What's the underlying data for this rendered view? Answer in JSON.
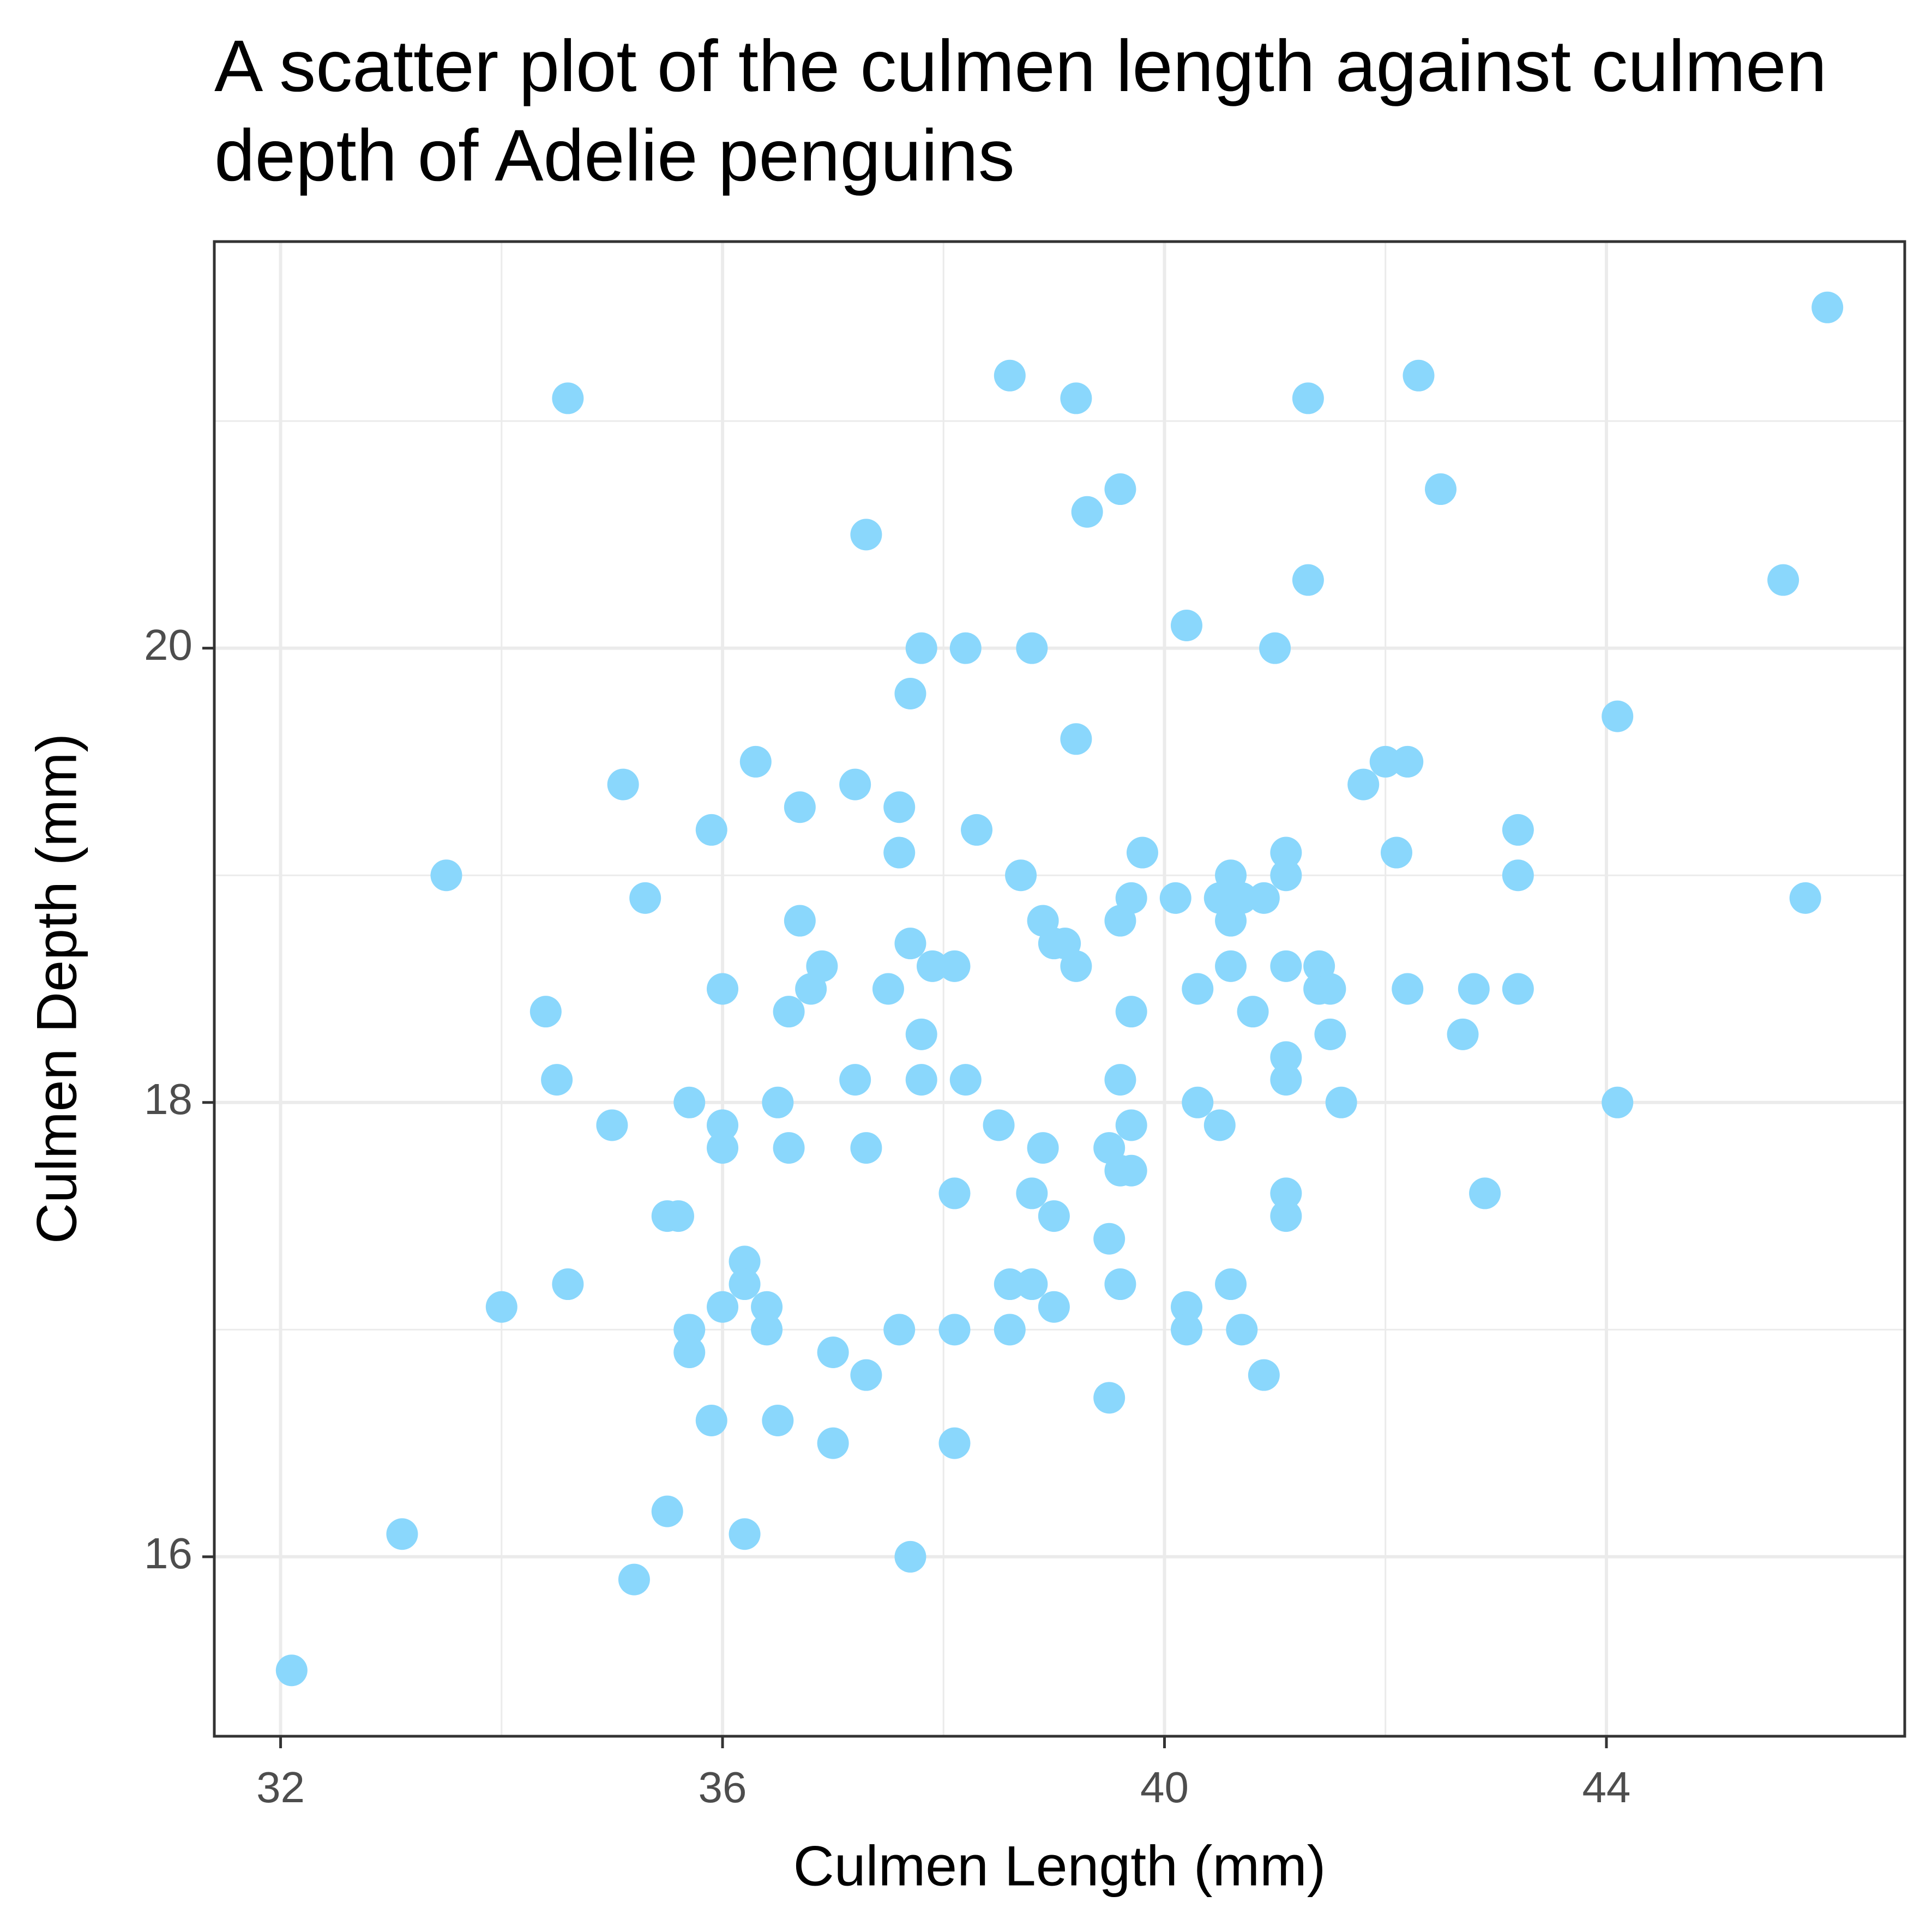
{
  "chart_data": {
    "type": "scatter",
    "title": "A scatter plot of the culmen length against culmen depth of Adelie penguins",
    "x_label": "Culmen Length (mm)",
    "y_label": "Culmen Depth (mm)",
    "color": "#8AD7FC",
    "grid": true,
    "minor_grid": true,
    "xlim": [
      31.4,
      46.7
    ],
    "ylim": [
      15.21,
      21.79
    ],
    "xticks": [
      32,
      36,
      40,
      44
    ],
    "yticks": [
      16,
      18,
      20
    ],
    "x": [
      34.6,
      38.6,
      39.2,
      41.3,
      42.3,
      46.0,
      39.6,
      39.3,
      42.5,
      37.3,
      41.3,
      45.6,
      40.2,
      37.8,
      38.2,
      38.8,
      41.0,
      37.7,
      44.1,
      39.2,
      36.3,
      42.0,
      42.2,
      35.1,
      37.2,
      41.8,
      35.9,
      36.7,
      37.6,
      38.3,
      43.2,
      37.6,
      39.8,
      41.1,
      42.1,
      33.5,
      38.7,
      40.6,
      41.1,
      43.2,
      35.3,
      39.7,
      40.1,
      40.5,
      40.7,
      40.9,
      45.8,
      36.7,
      38.9,
      39.6,
      40.6,
      37.7,
      39.0,
      39.1,
      36.9,
      37.9,
      38.1,
      39.2,
      40.6,
      41.1,
      41.4,
      36.0,
      36.8,
      37.5,
      40.3,
      41.4,
      41.5,
      42.2,
      42.8,
      43.2,
      34.4,
      36.6,
      39.7,
      40.8,
      37.8,
      41.5,
      42.7,
      41.1,
      34.5,
      37.2,
      37.8,
      38.2,
      39.6,
      41.1,
      35.7,
      36.5,
      40.3,
      41.6,
      44.1,
      35.0,
      36.0,
      38.5,
      39.7,
      40.5,
      36.0,
      36.6,
      37.3,
      38.9,
      39.5,
      39.6,
      39.7,
      38.1,
      38.8,
      41.1,
      42.9,
      35.5,
      35.6,
      39.0,
      41.1,
      39.5,
      36.2,
      34.6,
      36.2,
      38.6,
      38.8,
      39.6,
      40.6,
      34.0,
      36.0,
      36.4,
      39.0,
      40.2,
      35.7,
      36.4,
      37.6,
      38.1,
      38.6,
      40.2,
      40.7,
      35.7,
      37.0,
      37.3,
      40.9,
      39.5,
      35.9,
      36.5,
      37.0,
      38.1,
      35.5,
      33.1,
      36.2,
      37.7,
      35.2,
      32.1
    ],
    "values": [
      21.1,
      21.2,
      21.1,
      21.1,
      21.2,
      21.5,
      20.7,
      20.6,
      20.7,
      20.5,
      20.3,
      20.3,
      20.1,
      20.0,
      20.0,
      20.0,
      20.0,
      19.8,
      19.7,
      19.6,
      19.5,
      19.5,
      19.5,
      19.4,
      19.4,
      19.4,
      19.2,
      19.3,
      19.3,
      19.2,
      19.2,
      19.1,
      19.1,
      19.1,
      19.1,
      19.0,
      19.0,
      19.0,
      19.0,
      19.0,
      18.9,
      18.9,
      18.9,
      18.9,
      18.9,
      18.9,
      18.9,
      18.8,
      18.8,
      18.8,
      18.8,
      18.7,
      18.7,
      18.7,
      18.6,
      18.6,
      18.6,
      18.6,
      18.6,
      18.6,
      18.6,
      18.5,
      18.5,
      18.5,
      18.5,
      18.5,
      18.5,
      18.5,
      18.5,
      18.5,
      18.4,
      18.4,
      18.4,
      18.4,
      18.3,
      18.3,
      18.3,
      18.2,
      18.1,
      18.1,
      18.1,
      18.1,
      18.1,
      18.1,
      18.0,
      18.0,
      18.0,
      18.0,
      18.0,
      17.9,
      17.9,
      17.9,
      17.9,
      17.9,
      17.8,
      17.8,
      17.8,
      17.8,
      17.8,
      17.7,
      17.7,
      17.6,
      17.6,
      17.6,
      17.6,
      17.5,
      17.5,
      17.5,
      17.5,
      17.4,
      17.3,
      17.2,
      17.2,
      17.2,
      17.2,
      17.2,
      17.2,
      17.1,
      17.1,
      17.1,
      17.1,
      17.1,
      17.0,
      17.0,
      17.0,
      17.0,
      17.0,
      17.0,
      17.0,
      16.9,
      16.9,
      16.8,
      16.8,
      16.7,
      16.6,
      16.6,
      16.5,
      16.5,
      16.2,
      16.1,
      16.1,
      16.0,
      15.9,
      15.5
    ]
  }
}
